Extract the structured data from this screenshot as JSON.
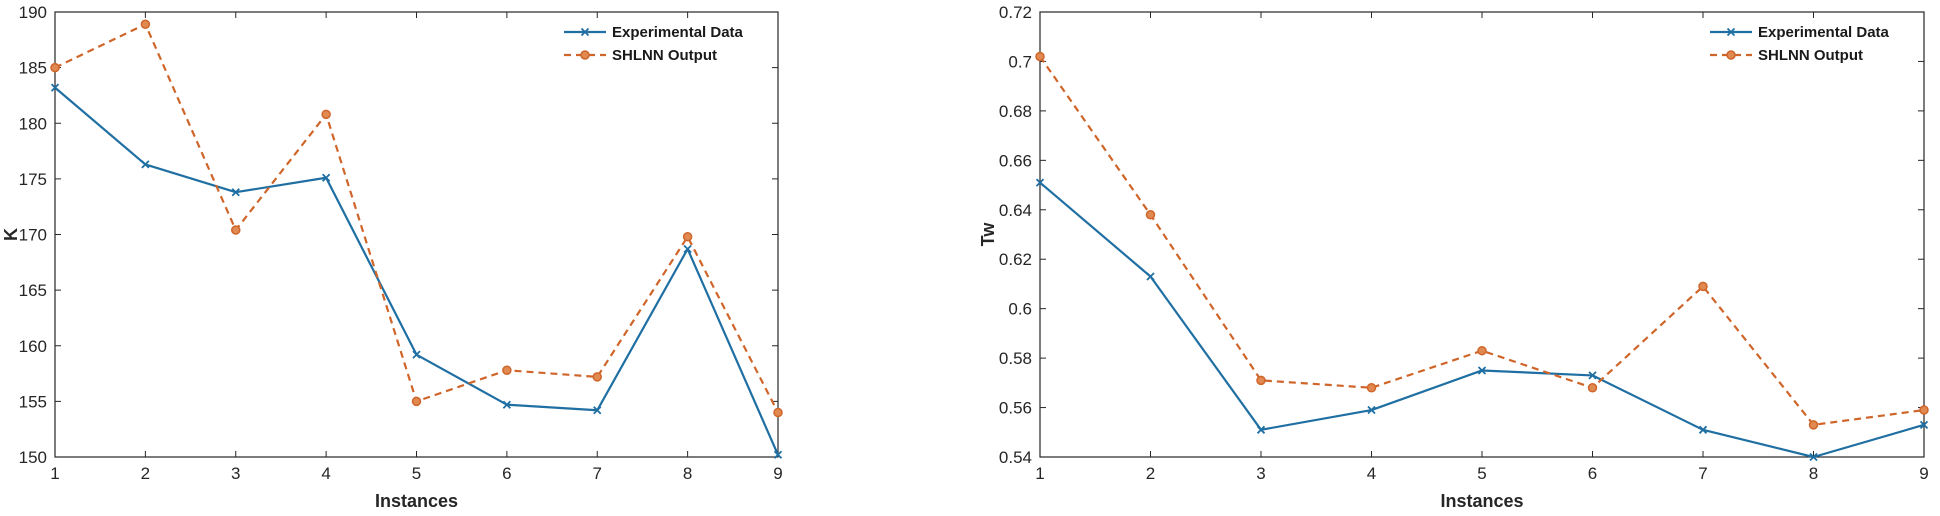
{
  "chart_data": [
    {
      "type": "line",
      "x": [
        1,
        2,
        3,
        4,
        5,
        6,
        7,
        8,
        9
      ],
      "xlabel": "Instances",
      "ylabel": "K",
      "xlim": [
        1,
        9
      ],
      "ylim": [
        150,
        190
      ],
      "xticks": [
        "1",
        "2",
        "3",
        "4",
        "5",
        "6",
        "7",
        "8",
        "9"
      ],
      "yticks": [
        "150",
        "155",
        "160",
        "165",
        "170",
        "175",
        "180",
        "185",
        "190"
      ],
      "legend_position": "top-right",
      "series": [
        {
          "name": "Experimental Data",
          "color": "#1f6fa3",
          "style": "solid",
          "marker": "x",
          "values": [
            183.2,
            176.3,
            173.8,
            175.1,
            159.2,
            154.7,
            154.2,
            168.7,
            150.2
          ]
        },
        {
          "name": "SHLNN Output",
          "color": "#d0652a",
          "style": "dashed",
          "marker": "circle",
          "values": [
            185.0,
            188.9,
            170.4,
            180.8,
            155.0,
            157.8,
            157.2,
            169.8,
            154.0
          ]
        }
      ]
    },
    {
      "type": "line",
      "x": [
        1,
        2,
        3,
        4,
        5,
        6,
        7,
        8,
        9
      ],
      "xlabel": "Instances",
      "ylabel": "Tw",
      "xlim": [
        1,
        9
      ],
      "ylim": [
        0.54,
        0.72
      ],
      "xticks": [
        "1",
        "2",
        "3",
        "4",
        "5",
        "6",
        "7",
        "8",
        "9"
      ],
      "yticks": [
        "0.54",
        "0.56",
        "0.58",
        "0.6",
        "0.62",
        "0.64",
        "0.66",
        "0.68",
        "0.7",
        "0.72"
      ],
      "legend_position": "top-right",
      "series": [
        {
          "name": "Experimental Data",
          "color": "#1f6fa3",
          "style": "solid",
          "marker": "x",
          "values": [
            0.651,
            0.613,
            0.551,
            0.559,
            0.575,
            0.573,
            0.551,
            0.54,
            0.553
          ]
        },
        {
          "name": "SHLNN Output",
          "color": "#d0652a",
          "style": "dashed",
          "marker": "circle",
          "values": [
            0.702,
            0.638,
            0.571,
            0.568,
            0.583,
            0.568,
            0.609,
            0.553,
            0.559
          ]
        }
      ]
    }
  ]
}
